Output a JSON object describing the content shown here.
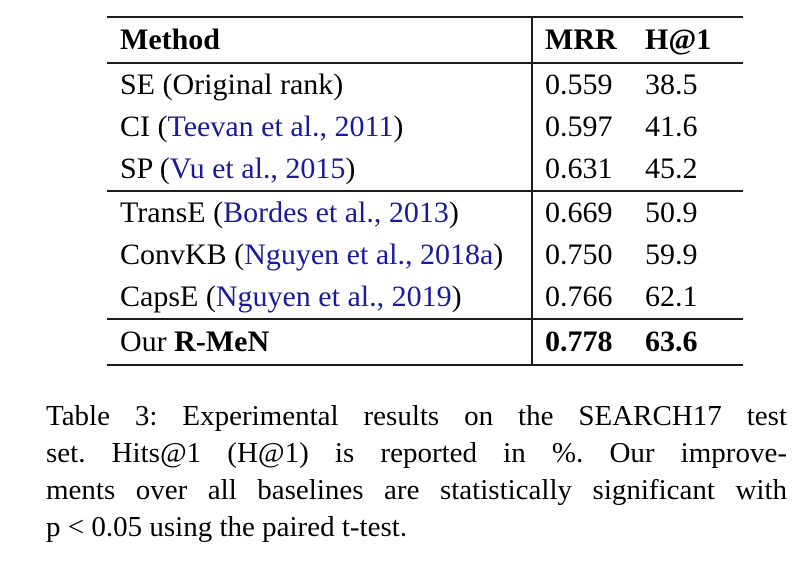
{
  "table": {
    "header": {
      "method": "Method",
      "mrr": "MRR",
      "h1": "H@1"
    },
    "groups": [
      {
        "rows": [
          {
            "pre": "SE (Original rank)",
            "cite": "",
            "post": "",
            "strong": "",
            "mrr": "0.559",
            "h1": "38.5",
            "bold": false
          },
          {
            "pre": "CI (",
            "cite": "Teevan et al., 2011",
            "post": ")",
            "strong": "",
            "mrr": "0.597",
            "h1": "41.6",
            "bold": false
          },
          {
            "pre": "SP (",
            "cite": "Vu et al., 2015",
            "post": ")",
            "strong": "",
            "mrr": "0.631",
            "h1": "45.2",
            "bold": false
          }
        ]
      },
      {
        "rows": [
          {
            "pre": "TransE (",
            "cite": "Bordes et al., 2013",
            "post": ")",
            "strong": "",
            "mrr": "0.669",
            "h1": "50.9",
            "bold": false
          },
          {
            "pre": "ConvKB (",
            "cite": "Nguyen et al., 2018a",
            "post": ")",
            "strong": "",
            "mrr": "0.750",
            "h1": "59.9",
            "bold": false
          },
          {
            "pre": "CapsE (",
            "cite": "Nguyen et al., 2019",
            "post": ")",
            "strong": "",
            "mrr": "0.766",
            "h1": "62.1",
            "bold": false
          }
        ]
      },
      {
        "rows": [
          {
            "pre": "Our ",
            "cite": "",
            "post": "",
            "strong": "R-MeN",
            "mrr": "0.778",
            "h1": "63.6",
            "bold": true
          }
        ]
      }
    ]
  },
  "caption": {
    "lines": [
      "Table 3: Experimental results on the SEARCH17 test",
      "set.  Hits@1 (H@1) is reported in %.  Our improve-",
      "ments over all baselines are statistically significant with",
      "p < 0.05 using the paired t-test."
    ]
  },
  "colors": {
    "citation_blue": "#1a1a9c",
    "rule": "#1c1c1c",
    "text": "#000000",
    "background": "#ffffff"
  }
}
